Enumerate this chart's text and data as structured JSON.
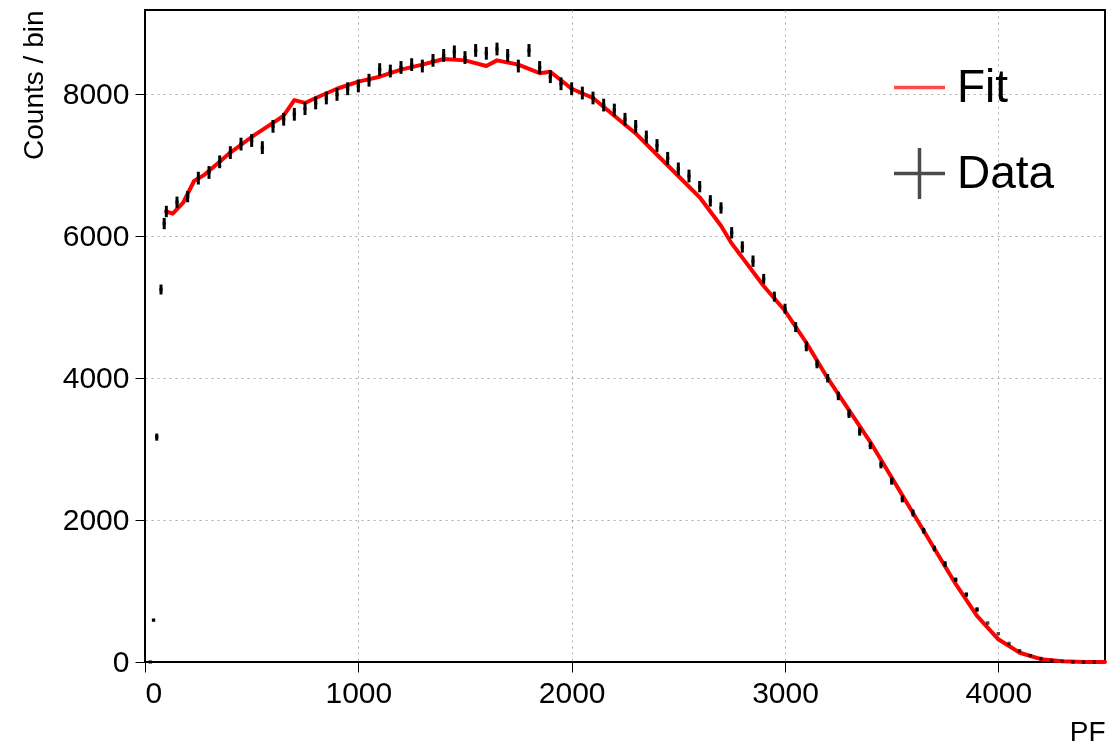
{
  "chart_data": {
    "type": "scatter",
    "xlabel": "PF",
    "ylabel": "Counts / bin",
    "xlim": [
      0,
      4500
    ],
    "ylim": [
      0,
      9190
    ],
    "xticks": [
      0,
      1000,
      2000,
      3000,
      4000
    ],
    "yticks": [
      0,
      2000,
      4000,
      6000,
      8000
    ],
    "grid": true,
    "legend": "top right",
    "series": [
      {
        "name": "Fit",
        "type": "line",
        "color": "#ff0000",
        "line_style": "solid",
        "x": [
          100,
          130,
          180,
          230,
          280,
          350,
          400,
          500,
          600,
          650,
          700,
          750,
          800,
          900,
          1000,
          1100,
          1200,
          1300,
          1400,
          1500,
          1600,
          1650,
          1750,
          1850,
          1900,
          1950,
          2000,
          2100,
          2200,
          2300,
          2400,
          2500,
          2600,
          2700,
          2750,
          2800,
          2900,
          3000,
          3100,
          3200,
          3300,
          3400,
          3500,
          3600,
          3700,
          3800,
          3900,
          4000,
          4100,
          4200,
          4300,
          4400,
          4500
        ],
        "values": [
          6350,
          6320,
          6480,
          6780,
          6870,
          7050,
          7180,
          7400,
          7600,
          7700,
          7920,
          7880,
          7950,
          8080,
          8180,
          8250,
          8350,
          8420,
          8500,
          8480,
          8400,
          8480,
          8420,
          8300,
          8320,
          8200,
          8080,
          7950,
          7700,
          7450,
          7150,
          6850,
          6550,
          6150,
          5900,
          5700,
          5300,
          4950,
          4500,
          4000,
          3550,
          3100,
          2600,
          2100,
          1600,
          1100,
          650,
          320,
          130,
          40,
          10,
          0,
          0
        ]
      },
      {
        "name": "Data",
        "color": "#000000",
        "marker": "cross",
        "x": [
          25,
          40,
          55,
          75,
          90,
          100,
          150,
          200,
          250,
          300,
          350,
          400,
          450,
          500,
          550,
          600,
          650,
          700,
          750,
          800,
          850,
          900,
          950,
          1000,
          1050,
          1100,
          1150,
          1200,
          1250,
          1300,
          1350,
          1400,
          1450,
          1500,
          1550,
          1600,
          1650,
          1700,
          1750,
          1800,
          1850,
          1900,
          1950,
          2000,
          2050,
          2100,
          2150,
          2200,
          2250,
          2300,
          2350,
          2400,
          2450,
          2500,
          2550,
          2600,
          2650,
          2700,
          2750,
          2800,
          2850,
          2900,
          2950,
          3000,
          3050,
          3100,
          3150,
          3200,
          3250,
          3300,
          3350,
          3400,
          3450,
          3500,
          3550,
          3600,
          3650,
          3700,
          3750,
          3800,
          3850,
          3900,
          3950,
          4000,
          4050,
          4100,
          4150,
          4200,
          4250,
          4300,
          4350,
          4400,
          4450
        ],
        "values": [
          0,
          590,
          3170,
          5250,
          6180,
          6350,
          6480,
          6560,
          6820,
          6900,
          7050,
          7180,
          7300,
          7350,
          7250,
          7550,
          7650,
          7720,
          7800,
          7880,
          7950,
          8000,
          8080,
          8120,
          8200,
          8350,
          8330,
          8380,
          8420,
          8400,
          8480,
          8550,
          8600,
          8520,
          8620,
          8580,
          8640,
          8550,
          8400,
          8620,
          8380,
          8250,
          8150,
          8080,
          8020,
          7950,
          7850,
          7780,
          7650,
          7550,
          7400,
          7280,
          7100,
          6950,
          6850,
          6700,
          6500,
          6400,
          6050,
          5850,
          5650,
          5400,
          5150,
          4980,
          4720,
          4450,
          4200,
          4000,
          3750,
          3500,
          3250,
          3050,
          2780,
          2550,
          2300,
          2100,
          1850,
          1600,
          1380,
          1160,
          950,
          740,
          550,
          400,
          260,
          160,
          90,
          50,
          20,
          10,
          0,
          0,
          0
        ],
        "errors": [
          0,
          20,
          50,
          70,
          80,
          80,
          80,
          80,
          90,
          90,
          90,
          90,
          90,
          90,
          90,
          90,
          90,
          90,
          90,
          90,
          90,
          90,
          90,
          90,
          90,
          90,
          90,
          90,
          90,
          90,
          90,
          90,
          90,
          90,
          90,
          90,
          90,
          90,
          90,
          90,
          90,
          90,
          90,
          90,
          90,
          90,
          90,
          90,
          90,
          90,
          90,
          90,
          90,
          90,
          90,
          80,
          80,
          80,
          80,
          80,
          80,
          70,
          70,
          70,
          70,
          70,
          60,
          60,
          60,
          60,
          60,
          50,
          50,
          50,
          50,
          50,
          40,
          40,
          40,
          30,
          30,
          30,
          null,
          null,
          null,
          null,
          null,
          null,
          null,
          null,
          null,
          null,
          null
        ]
      }
    ]
  }
}
